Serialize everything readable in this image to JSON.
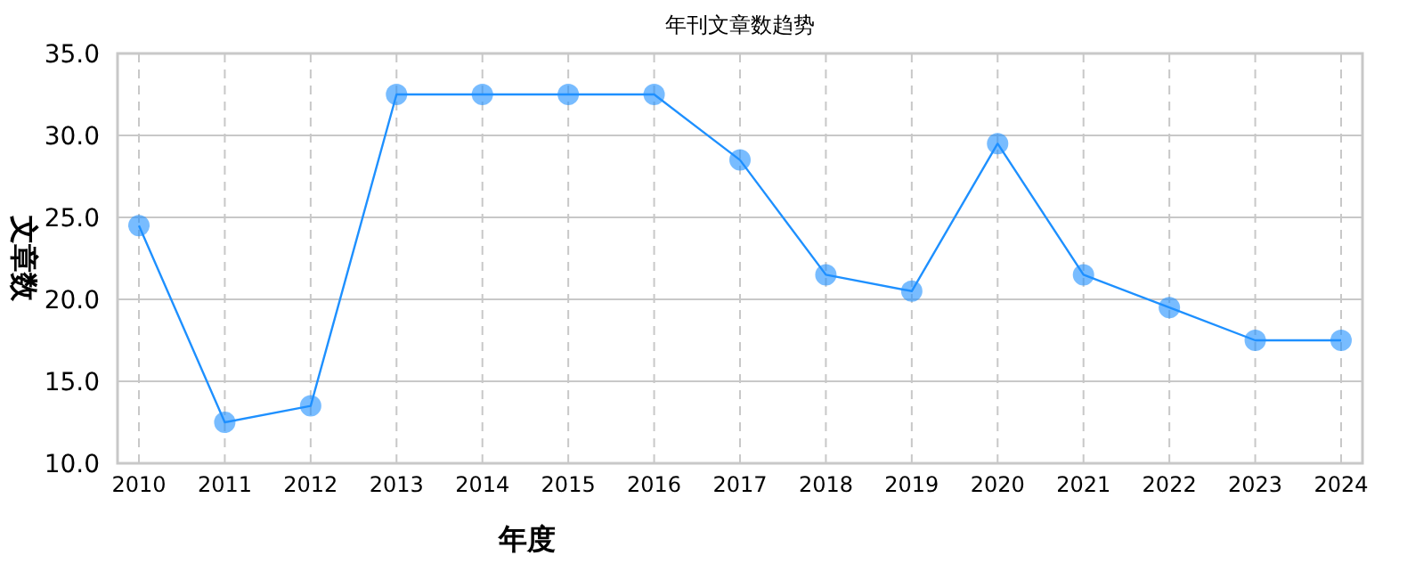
{
  "chart_data": {
    "type": "line",
    "title": "年刊文章数趋势",
    "xlabel": "年度",
    "ylabel": "文章数",
    "categories": [
      "2010",
      "2011",
      "2012",
      "2013",
      "2014",
      "2015",
      "2016",
      "2017",
      "2018",
      "2019",
      "2020",
      "2021",
      "2022",
      "2023",
      "2024"
    ],
    "series": [
      {
        "color": "#1e90ff",
        "values": [
          24.5,
          12.5,
          13.5,
          32.5,
          32.5,
          32.5,
          32.5,
          28.5,
          21.5,
          20.5,
          29.5,
          21.5,
          19.5,
          17.5,
          17.5
        ]
      }
    ],
    "ylim": [
      10,
      35
    ],
    "yticks": [
      {
        "value": 10,
        "label": "10.0"
      },
      {
        "value": 15,
        "label": "15.0"
      },
      {
        "value": 20,
        "label": "20.0"
      },
      {
        "value": 25,
        "label": "25.0"
      },
      {
        "value": 30,
        "label": "30.0"
      },
      {
        "value": 35,
        "label": "35.0"
      }
    ],
    "grid": true,
    "marker": "circle",
    "line_style": "solid"
  }
}
